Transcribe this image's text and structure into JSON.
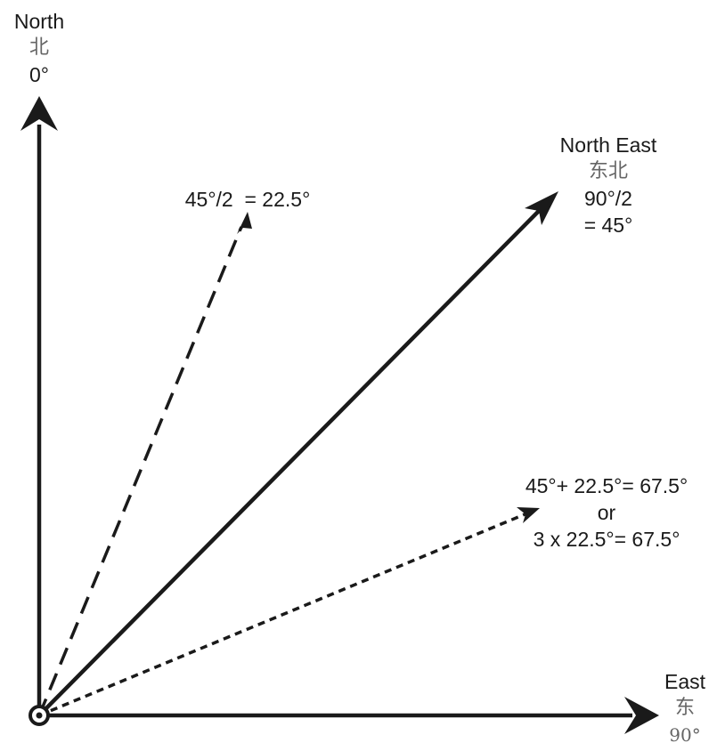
{
  "north": {
    "name": "North",
    "chinese": "北",
    "degrees": "0°"
  },
  "north_east": {
    "name": "North East",
    "chinese": "东北",
    "formula_line1": "90°/2",
    "formula_line2": "= 45°"
  },
  "nne": {
    "formula": "45°/2  = 22.5°"
  },
  "ene": {
    "line1": "45°+ 22.5°= 67.5°",
    "line2": "or",
    "line3": "3 x 22.5°= 67.5°"
  },
  "east": {
    "name": "East",
    "chinese": "东",
    "degrees": "90°"
  },
  "colors": {
    "stroke": "#1a1a1a",
    "chinese_text": "#666666"
  }
}
